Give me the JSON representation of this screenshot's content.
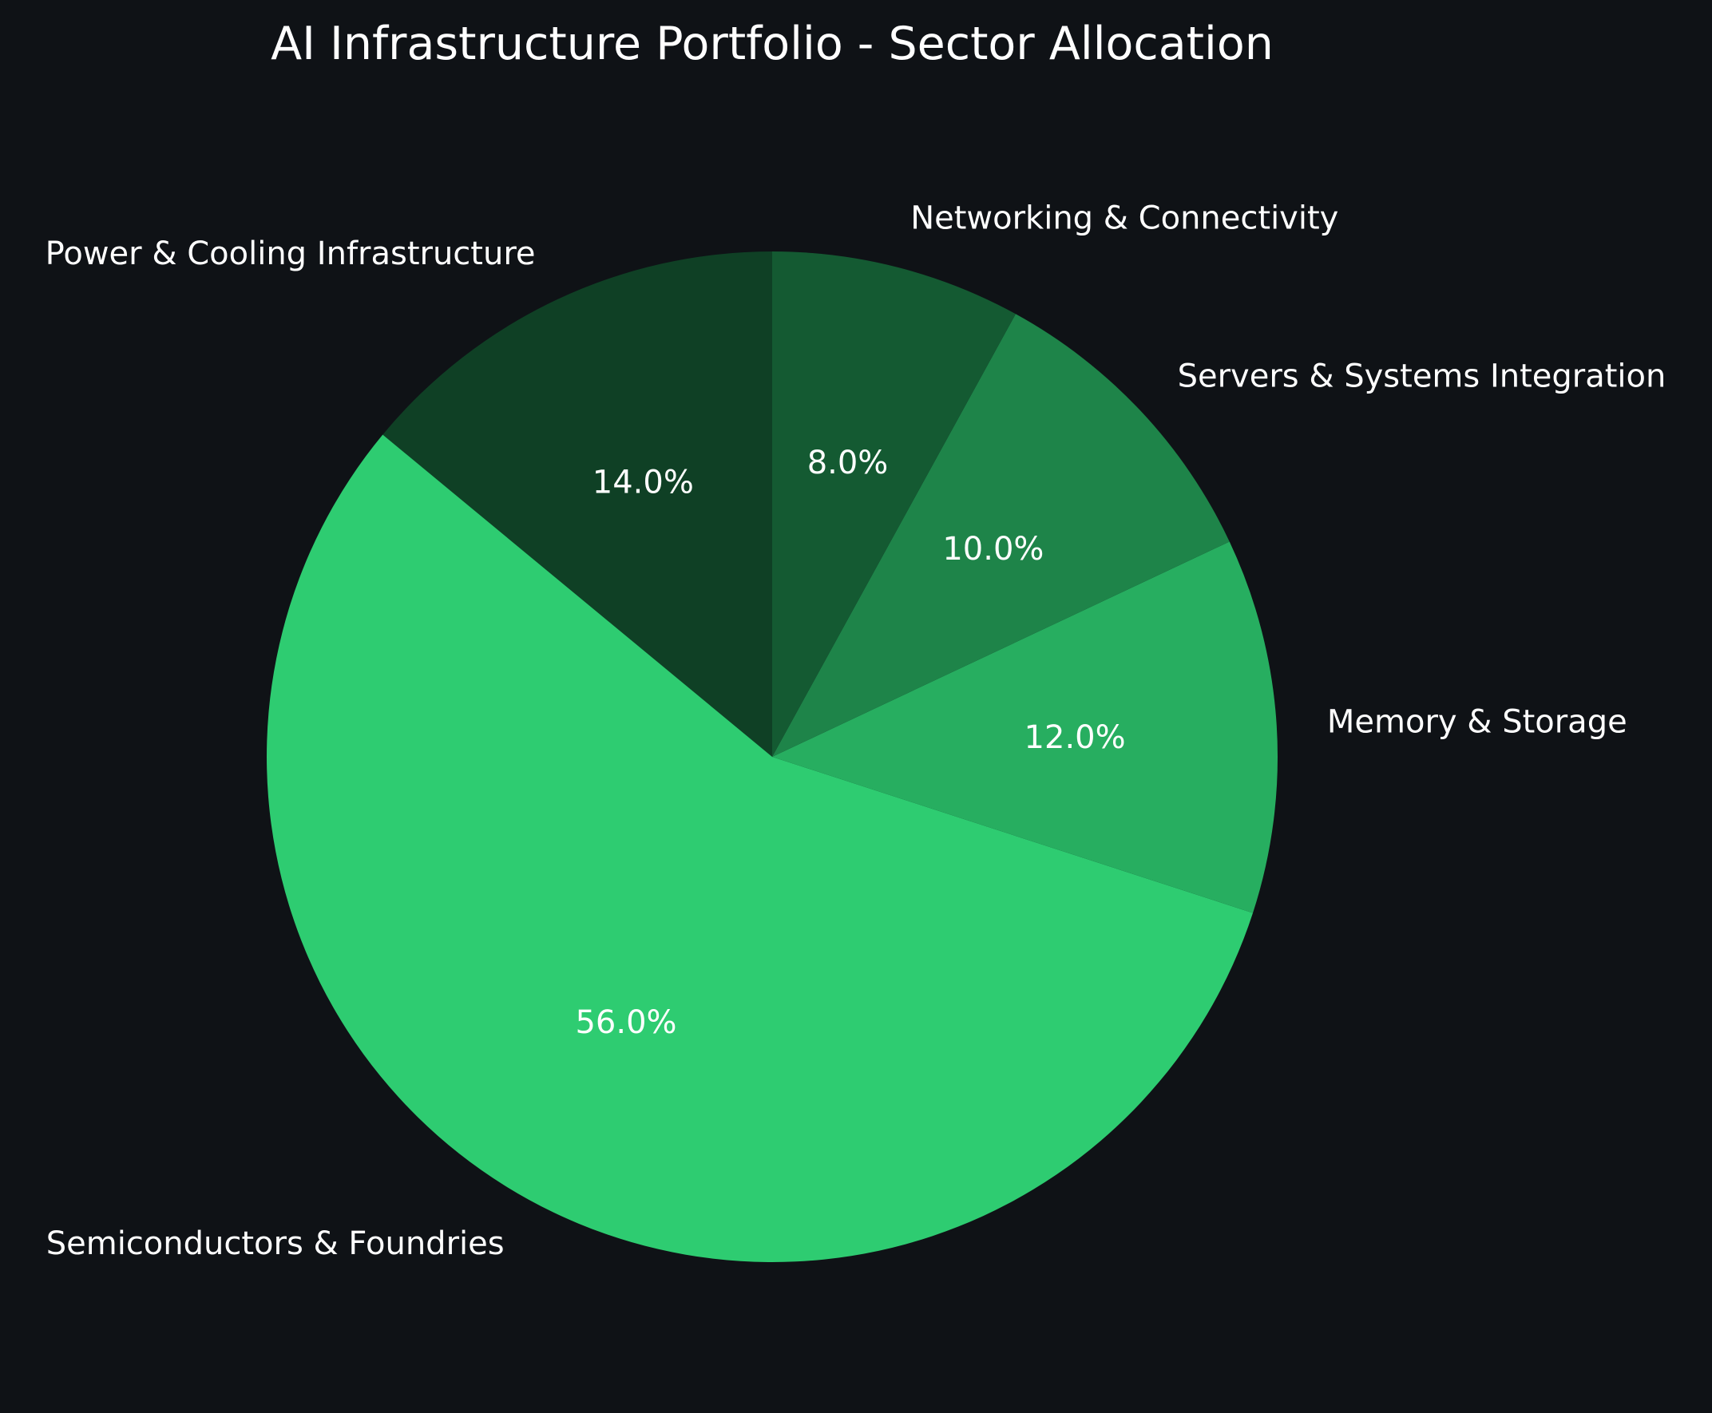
{
  "chart_data": {
    "type": "pie",
    "title": "AI Infrastructure Portfolio - Sector Allocation",
    "background": "#0f1216",
    "text_color": "#ffffff",
    "start_angle_deg": 90,
    "direction": "counterclockwise",
    "slices": [
      {
        "label": "Power & Cooling Infrastructure",
        "value": 14.0,
        "pct_label": "14.0%",
        "color": "#0f4025",
        "label_side": "left"
      },
      {
        "label": "Semiconductors & Foundries",
        "value": 56.0,
        "pct_label": "56.0%",
        "color": "#2ecc71",
        "label_side": "left"
      },
      {
        "label": "Memory & Storage",
        "value": 12.0,
        "pct_label": "12.0%",
        "color": "#27ae60",
        "label_side": "right"
      },
      {
        "label": "Servers & Systems Integration",
        "value": 10.0,
        "pct_label": "10.0%",
        "color": "#1e8449",
        "label_side": "right"
      },
      {
        "label": "Networking & Connectivity",
        "value": 8.0,
        "pct_label": "8.0%",
        "color": "#145a32",
        "label_side": "right"
      }
    ]
  }
}
